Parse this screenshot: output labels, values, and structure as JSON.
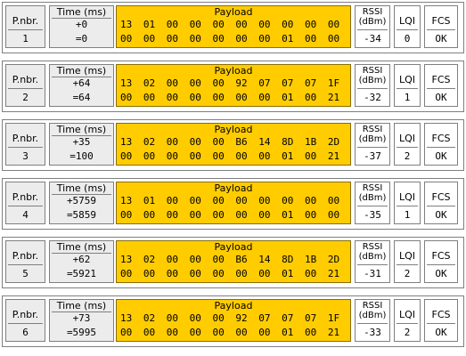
{
  "headers": {
    "pnbr": "P.nbr.",
    "time": "Time (ms)",
    "payload": "Payload",
    "rssi_line1": "RSSI",
    "rssi_line2": "(dBm)",
    "lqi": "LQI",
    "fcs": "FCS"
  },
  "colors": {
    "payload_bg": "#ffcc00",
    "cell_bg": "#ececec"
  },
  "packets": [
    {
      "pnbr": "1",
      "delta": "+0",
      "abs": "=0",
      "payload_row1": [
        "13",
        "01",
        "00",
        "00",
        "00",
        "00",
        "00",
        "00",
        "00",
        "00"
      ],
      "payload_row2": [
        "00",
        "00",
        "00",
        "00",
        "00",
        "00",
        "00",
        "01",
        "00",
        "00"
      ],
      "rssi": "-34",
      "lqi": "0",
      "fcs": "OK"
    },
    {
      "pnbr": "2",
      "delta": "+64",
      "abs": "=64",
      "payload_row1": [
        "13",
        "02",
        "00",
        "00",
        "00",
        "92",
        "07",
        "07",
        "07",
        "1F"
      ],
      "payload_row2": [
        "00",
        "00",
        "00",
        "00",
        "00",
        "00",
        "00",
        "01",
        "00",
        "21"
      ],
      "rssi": "-32",
      "lqi": "1",
      "fcs": "OK"
    },
    {
      "pnbr": "3",
      "delta": "+35",
      "abs": "=100",
      "payload_row1": [
        "13",
        "02",
        "00",
        "00",
        "00",
        "B6",
        "14",
        "8D",
        "1B",
        "2D"
      ],
      "payload_row2": [
        "00",
        "00",
        "00",
        "00",
        "00",
        "00",
        "00",
        "01",
        "00",
        "21"
      ],
      "rssi": "-37",
      "lqi": "2",
      "fcs": "OK"
    },
    {
      "pnbr": "4",
      "delta": "+5759",
      "abs": "=5859",
      "payload_row1": [
        "13",
        "01",
        "00",
        "00",
        "00",
        "00",
        "00",
        "00",
        "00",
        "00"
      ],
      "payload_row2": [
        "00",
        "00",
        "00",
        "00",
        "00",
        "00",
        "00",
        "01",
        "00",
        "00"
      ],
      "rssi": "-35",
      "lqi": "1",
      "fcs": "OK"
    },
    {
      "pnbr": "5",
      "delta": "+62",
      "abs": "=5921",
      "payload_row1": [
        "13",
        "02",
        "00",
        "00",
        "00",
        "B6",
        "14",
        "8D",
        "1B",
        "2D"
      ],
      "payload_row2": [
        "00",
        "00",
        "00",
        "00",
        "00",
        "00",
        "00",
        "01",
        "00",
        "21"
      ],
      "rssi": "-31",
      "lqi": "2",
      "fcs": "OK"
    },
    {
      "pnbr": "6",
      "delta": "+73",
      "abs": "=5995",
      "payload_row1": [
        "13",
        "02",
        "00",
        "00",
        "00",
        "92",
        "07",
        "07",
        "07",
        "1F"
      ],
      "payload_row2": [
        "00",
        "00",
        "00",
        "00",
        "00",
        "00",
        "00",
        "01",
        "00",
        "21"
      ],
      "rssi": "-33",
      "lqi": "2",
      "fcs": "OK"
    }
  ]
}
